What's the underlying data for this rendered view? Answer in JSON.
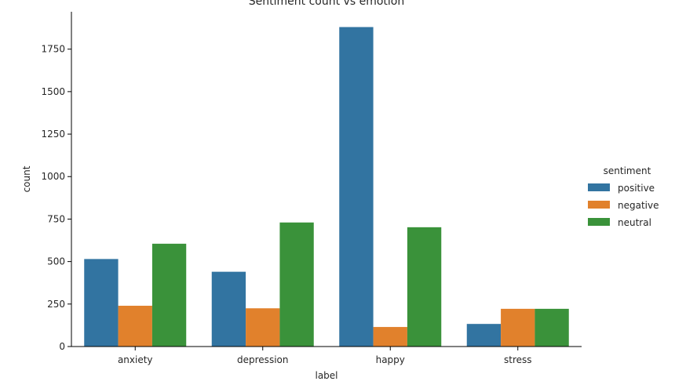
{
  "chart_data": {
    "type": "bar",
    "title": "Sentiment count vs emotion",
    "xlabel": "label",
    "ylabel": "count",
    "categories": [
      "anxiety",
      "depression",
      "happy",
      "stress"
    ],
    "series": [
      {
        "name": "positive",
        "color": "#3274a1",
        "values": [
          515,
          440,
          1880,
          133
        ]
      },
      {
        "name": "negative",
        "color": "#e1812c",
        "values": [
          240,
          225,
          115,
          222
        ]
      },
      {
        "name": "neutral",
        "color": "#3a923a",
        "values": [
          605,
          730,
          702,
          222
        ]
      }
    ],
    "ylim": [
      0,
      1970
    ],
    "yticks": [
      0,
      250,
      500,
      750,
      1000,
      1250,
      1500,
      1750
    ],
    "legend": {
      "title": "sentiment",
      "placement": "right"
    },
    "grid": false
  }
}
